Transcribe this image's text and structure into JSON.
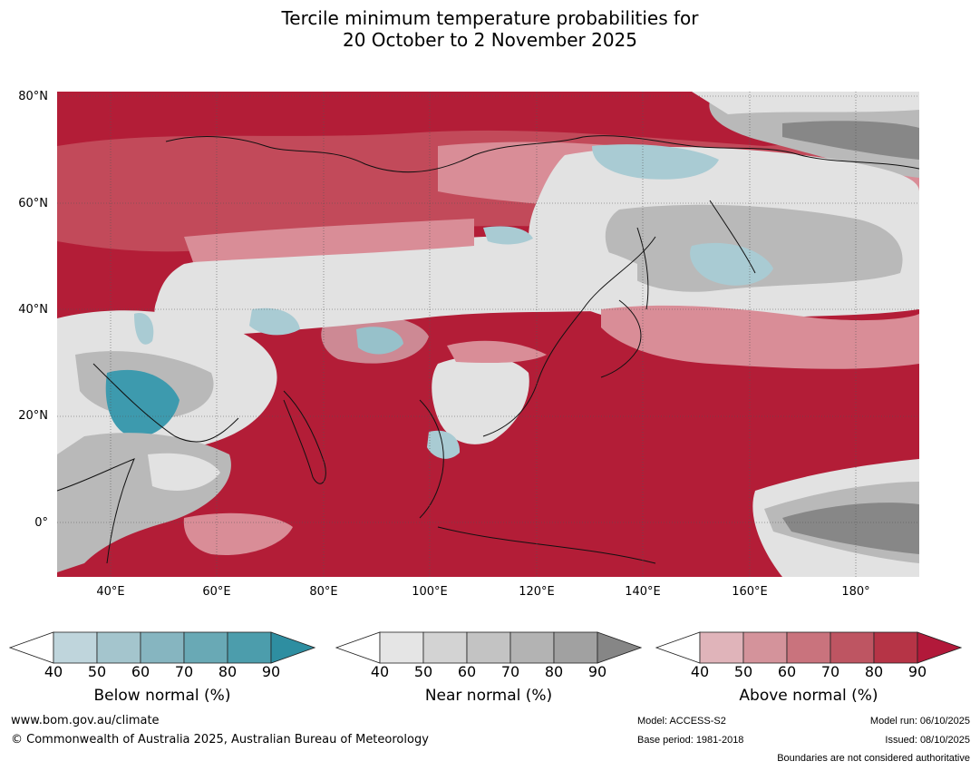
{
  "title_line1": "Tercile minimum temperature probabilities for",
  "title_line2": "20 October to 2 November 2025",
  "map": {
    "lat_labels": [
      "80°N",
      "60°N",
      "40°N",
      "20°N",
      "0°"
    ],
    "lon_labels": [
      "40°E",
      "60°E",
      "80°E",
      "100°E",
      "120°E",
      "140°E",
      "160°E",
      "180°"
    ],
    "colors": {
      "above_deep": "#b31d37",
      "above_mid": "#c24a5a",
      "above_light": "#d98d97",
      "near_light": "#e2e2e2",
      "near_mid": "#b9b9b9",
      "near_dark": "#878787",
      "below_light": "#a9cbd3",
      "below_deep": "#3d9aae",
      "coast": "#111111"
    }
  },
  "colorbars": [
    {
      "label": "Below normal (%)",
      "ticks": [
        "40",
        "50",
        "60",
        "70",
        "80",
        "90"
      ],
      "colors": [
        "#ffffff",
        "#bfd5dc",
        "#a4c5cd",
        "#86b5c0",
        "#69a9b5",
        "#4c9dac",
        "#2e8ea1"
      ]
    },
    {
      "label": "Near normal (%)",
      "ticks": [
        "40",
        "50",
        "60",
        "70",
        "80",
        "90"
      ],
      "colors": [
        "#ffffff",
        "#e5e5e5",
        "#d3d3d3",
        "#c3c3c3",
        "#b3b3b3",
        "#a1a1a1",
        "#868686"
      ]
    },
    {
      "label": "Above normal (%)",
      "ticks": [
        "40",
        "50",
        "60",
        "70",
        "80",
        "90"
      ],
      "colors": [
        "#ffffff",
        "#e0b4ba",
        "#d4939b",
        "#c9737d",
        "#be5562",
        "#b63446",
        "#b2193a"
      ]
    }
  ],
  "footer": {
    "website": "www.bom.gov.au/climate",
    "copyright": "© Commonwealth of Australia 2025, Australian Bureau of Meteorology",
    "model": "Model: ACCESS-S2",
    "base_period": "Base period: 1981-2018",
    "model_run": "Model run: 06/10/2025",
    "issued": "Issued: 08/10/2025",
    "disclaimer": "Boundaries are not considered authoritative"
  }
}
